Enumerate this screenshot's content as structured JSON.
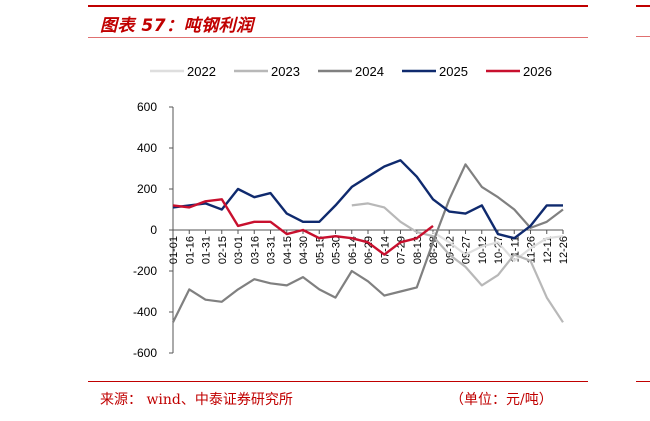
{
  "header": {
    "figure_title": "图表 57：吨钢利润"
  },
  "footer": {
    "source": "来源：  wind、中泰证券研究所",
    "unit": "（单位：元/吨）"
  },
  "colors": {
    "accent": "#c00000"
  },
  "chart_data": {
    "type": "line",
    "title": "",
    "xlabel": "",
    "ylabel": "",
    "ylim": [
      -600,
      600
    ],
    "yticks": [
      "600",
      "400",
      "200",
      "0",
      "-200",
      "-400",
      "-600"
    ],
    "x_tick_labels": [
      "01-01",
      "01-16",
      "01-31",
      "02-15",
      "03-01",
      "03-16",
      "03-31",
      "04-15",
      "04-30",
      "05-15",
      "05-30",
      "06-14",
      "06-29",
      "07-14",
      "07-29",
      "08-13",
      "08-28",
      "09-12",
      "09-27",
      "10-12",
      "10-27",
      "11-11",
      "11-26",
      "12-11",
      "12-26"
    ],
    "legend_position": "top",
    "series": [
      {
        "name": "2022",
        "color": "#dedede",
        "width": 2.2,
        "values": [
          null,
          null,
          null,
          null,
          null,
          null,
          null,
          null,
          null,
          null,
          null,
          null,
          null,
          null,
          null,
          null,
          -10,
          -60,
          -120,
          -80,
          -60,
          -150,
          -90,
          -40,
          -30
        ]
      },
      {
        "name": "2023",
        "color": "#b8b8b8",
        "width": 2.2,
        "values": [
          null,
          null,
          null,
          null,
          null,
          null,
          null,
          null,
          null,
          null,
          null,
          120,
          130,
          110,
          40,
          -10,
          -30,
          -120,
          -180,
          -270,
          -220,
          -120,
          -150,
          -330,
          -450
        ]
      },
      {
        "name": "2024",
        "color": "#808080",
        "width": 2.2,
        "values": [
          -450,
          -290,
          -340,
          -350,
          -290,
          -240,
          -260,
          -270,
          -230,
          -290,
          -330,
          -200,
          -250,
          -320,
          -300,
          -280,
          -60,
          150,
          320,
          210,
          160,
          100,
          10,
          40,
          100
        ]
      },
      {
        "name": "2025",
        "color": "#0f2a6e",
        "width": 2.4,
        "values": [
          110,
          120,
          130,
          100,
          200,
          160,
          180,
          80,
          40,
          40,
          120,
          210,
          260,
          310,
          340,
          260,
          150,
          90,
          80,
          120,
          -20,
          -40,
          20,
          120,
          120
        ]
      },
      {
        "name": "2026",
        "color": "#c8102e",
        "width": 2.4,
        "values": [
          120,
          110,
          140,
          150,
          20,
          40,
          40,
          -20,
          0,
          -40,
          -30,
          -40,
          -60,
          -120,
          -60,
          -40,
          20,
          null,
          null,
          null,
          null,
          null,
          null,
          null,
          null
        ]
      }
    ]
  }
}
